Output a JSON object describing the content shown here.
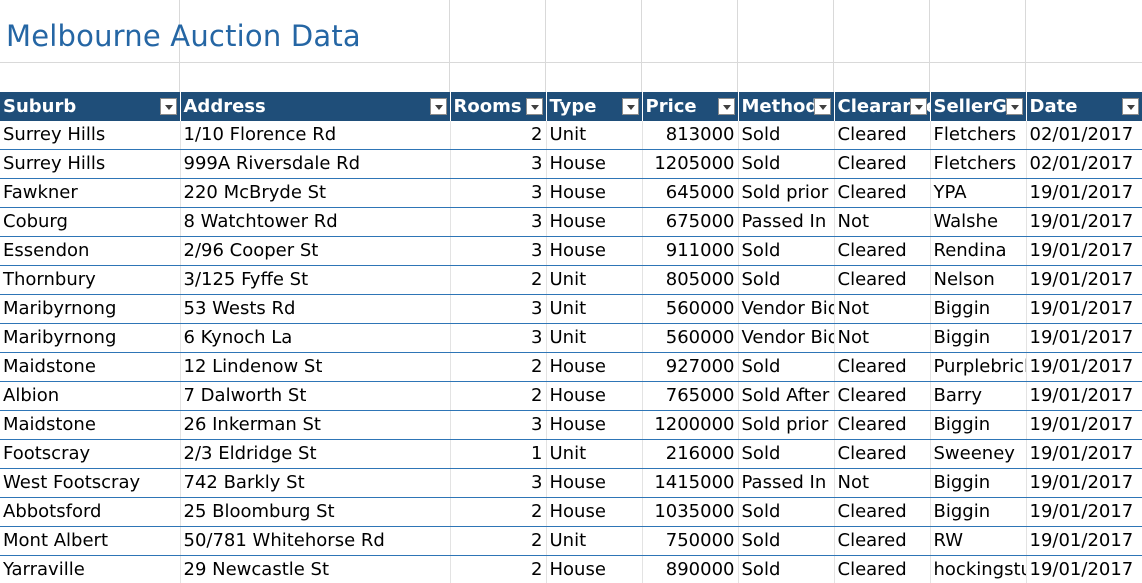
{
  "sheet": {
    "title": "Melbourne Auction Data",
    "headers": [
      "Suburb",
      "Address",
      "Rooms",
      "Type",
      "Price",
      "Method",
      "Clearance",
      "SellerG",
      "Date"
    ],
    "rows": [
      [
        "Surrey Hills",
        "1/10 Florence Rd",
        "2",
        "Unit",
        "813000",
        "Sold",
        "Cleared",
        "Fletchers",
        "02/01/2017"
      ],
      [
        "Surrey Hills",
        "999A Riversdale Rd",
        "3",
        "House",
        "1205000",
        "Sold",
        "Cleared",
        "Fletchers",
        "02/01/2017"
      ],
      [
        "Fawkner",
        "220 McBryde St",
        "3",
        "House",
        "645000",
        "Sold prior",
        "Cleared",
        "YPA",
        "19/01/2017"
      ],
      [
        "Coburg",
        "8 Watchtower Rd",
        "3",
        "House",
        "675000",
        "Passed In",
        "Not",
        "Walshe",
        "19/01/2017"
      ],
      [
        "Essendon",
        "2/96 Cooper St",
        "3",
        "House",
        "911000",
        "Sold",
        "Cleared",
        "Rendina",
        "19/01/2017"
      ],
      [
        "Thornbury",
        "3/125 Fyffe St",
        "2",
        "Unit",
        "805000",
        "Sold",
        "Cleared",
        "Nelson",
        "19/01/2017"
      ],
      [
        "Maribyrnong",
        "53 Wests Rd",
        "3",
        "Unit",
        "560000",
        "Vendor Bid",
        "Not",
        "Biggin",
        "19/01/2017"
      ],
      [
        "Maribyrnong",
        "6 Kynoch La",
        "3",
        "Unit",
        "560000",
        "Vendor Bid",
        "Not",
        "Biggin",
        "19/01/2017"
      ],
      [
        "Maidstone",
        "12 Lindenow St",
        "2",
        "House",
        "927000",
        "Sold",
        "Cleared",
        "Purplebricks",
        "19/01/2017"
      ],
      [
        "Albion",
        "7 Dalworth St",
        "2",
        "House",
        "765000",
        "Sold After",
        "Cleared",
        "Barry",
        "19/01/2017"
      ],
      [
        "Maidstone",
        "26 Inkerman St",
        "3",
        "House",
        "1200000",
        "Sold prior",
        "Cleared",
        "Biggin",
        "19/01/2017"
      ],
      [
        "Footscray",
        "2/3 Eldridge St",
        "1",
        "Unit",
        "216000",
        "Sold",
        "Cleared",
        "Sweeney",
        "19/01/2017"
      ],
      [
        "West Footscray",
        "742 Barkly St",
        "3",
        "House",
        "1415000",
        "Passed In",
        "Not",
        "Biggin",
        "19/01/2017"
      ],
      [
        "Abbotsford",
        "25 Bloomburg St",
        "2",
        "House",
        "1035000",
        "Sold",
        "Cleared",
        "Biggin",
        "19/01/2017"
      ],
      [
        "Mont Albert",
        "50/781 Whitehorse Rd",
        "2",
        "Unit",
        "750000",
        "Sold",
        "Cleared",
        "RW",
        "19/01/2017"
      ],
      [
        "Yarraville",
        "29 Newcastle St",
        "2",
        "House",
        "890000",
        "Sold",
        "Cleared",
        "hockingstuart",
        "19/01/2017"
      ]
    ]
  },
  "colors": {
    "header_bg": "#1f4e79",
    "title": "#2566a4",
    "row_border": "#2e75b6"
  }
}
